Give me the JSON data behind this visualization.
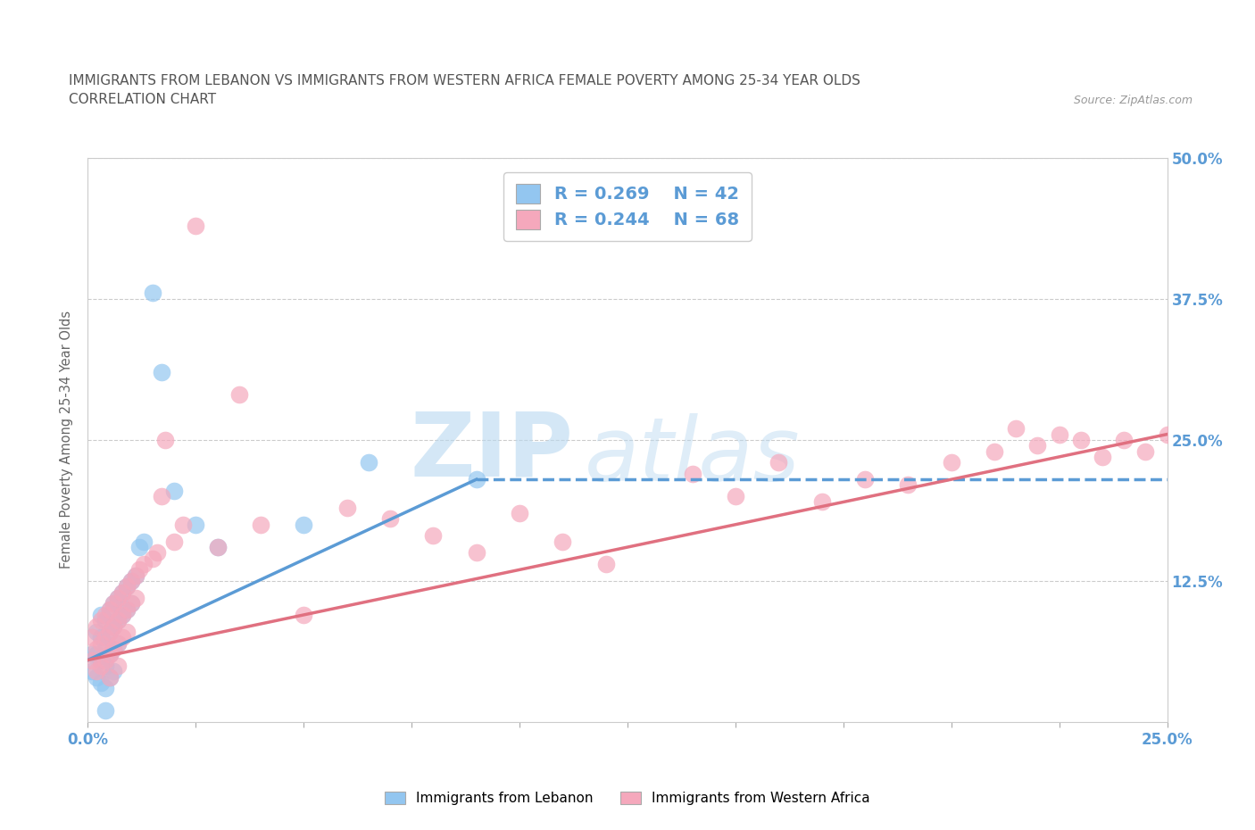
{
  "title_line1": "IMMIGRANTS FROM LEBANON VS IMMIGRANTS FROM WESTERN AFRICA FEMALE POVERTY AMONG 25-34 YEAR OLDS",
  "title_line2": "CORRELATION CHART",
  "source": "Source: ZipAtlas.com",
  "ylabel_label": "Female Poverty Among 25-34 Year Olds",
  "xlim": [
    0.0,
    0.25
  ],
  "ylim": [
    0.0,
    0.5
  ],
  "xticks": [
    0.0,
    0.025,
    0.05,
    0.075,
    0.1,
    0.125,
    0.15,
    0.175,
    0.2,
    0.225,
    0.25
  ],
  "xtick_labels": [
    "0.0%",
    "",
    "",
    "",
    "",
    "",
    "",
    "",
    "",
    "",
    "25.0%"
  ],
  "ytick_positions": [
    0.0,
    0.125,
    0.25,
    0.375,
    0.5
  ],
  "ytick_labels": [
    "",
    "12.5%",
    "25.0%",
    "37.5%",
    "50.0%"
  ],
  "hlines": [
    0.125,
    0.25,
    0.375,
    0.5
  ],
  "color_lebanon": "#93c6f0",
  "color_western_africa": "#f5a8bc",
  "color_lebanon_line": "#5b9bd5",
  "color_western_africa_line": "#e07080",
  "label_lebanon": "Immigrants from Lebanon",
  "label_western_africa": "Immigrants from Western Africa",
  "watermark_zip": "ZIP",
  "watermark_atlas": "atlas",
  "lebanon_scatter_x": [
    0.001,
    0.001,
    0.002,
    0.002,
    0.002,
    0.003,
    0.003,
    0.003,
    0.003,
    0.004,
    0.004,
    0.004,
    0.004,
    0.004,
    0.005,
    0.005,
    0.005,
    0.005,
    0.006,
    0.006,
    0.006,
    0.006,
    0.007,
    0.007,
    0.007,
    0.008,
    0.008,
    0.009,
    0.009,
    0.01,
    0.01,
    0.011,
    0.012,
    0.013,
    0.015,
    0.017,
    0.02,
    0.025,
    0.03,
    0.05,
    0.065,
    0.09
  ],
  "lebanon_scatter_y": [
    0.06,
    0.045,
    0.08,
    0.06,
    0.04,
    0.095,
    0.075,
    0.055,
    0.035,
    0.09,
    0.07,
    0.05,
    0.03,
    0.01,
    0.1,
    0.08,
    0.06,
    0.04,
    0.105,
    0.085,
    0.065,
    0.045,
    0.11,
    0.09,
    0.07,
    0.115,
    0.095,
    0.12,
    0.1,
    0.125,
    0.105,
    0.13,
    0.155,
    0.16,
    0.38,
    0.31,
    0.205,
    0.175,
    0.155,
    0.175,
    0.23,
    0.215
  ],
  "western_africa_scatter_x": [
    0.001,
    0.001,
    0.002,
    0.002,
    0.002,
    0.003,
    0.003,
    0.003,
    0.004,
    0.004,
    0.004,
    0.005,
    0.005,
    0.005,
    0.005,
    0.006,
    0.006,
    0.006,
    0.007,
    0.007,
    0.007,
    0.007,
    0.008,
    0.008,
    0.008,
    0.009,
    0.009,
    0.009,
    0.01,
    0.01,
    0.011,
    0.011,
    0.012,
    0.013,
    0.015,
    0.016,
    0.017,
    0.018,
    0.02,
    0.022,
    0.025,
    0.03,
    0.035,
    0.04,
    0.05,
    0.06,
    0.07,
    0.08,
    0.09,
    0.1,
    0.11,
    0.12,
    0.14,
    0.15,
    0.16,
    0.17,
    0.18,
    0.19,
    0.2,
    0.21,
    0.215,
    0.22,
    0.225,
    0.23,
    0.235,
    0.24,
    0.245,
    0.25
  ],
  "western_africa_scatter_y": [
    0.075,
    0.055,
    0.085,
    0.065,
    0.045,
    0.09,
    0.07,
    0.05,
    0.095,
    0.075,
    0.055,
    0.1,
    0.08,
    0.06,
    0.04,
    0.105,
    0.085,
    0.065,
    0.11,
    0.09,
    0.07,
    0.05,
    0.115,
    0.095,
    0.075,
    0.12,
    0.1,
    0.08,
    0.125,
    0.105,
    0.13,
    0.11,
    0.135,
    0.14,
    0.145,
    0.15,
    0.2,
    0.25,
    0.16,
    0.175,
    0.44,
    0.155,
    0.29,
    0.175,
    0.095,
    0.19,
    0.18,
    0.165,
    0.15,
    0.185,
    0.16,
    0.14,
    0.22,
    0.2,
    0.23,
    0.195,
    0.215,
    0.21,
    0.23,
    0.24,
    0.26,
    0.245,
    0.255,
    0.25,
    0.235,
    0.25,
    0.24,
    0.255
  ],
  "lebanon_trendline": [
    [
      0.0,
      0.055
    ],
    [
      0.09,
      0.215
    ]
  ],
  "lebanon_trendline_dashed": [
    [
      0.09,
      0.215
    ],
    [
      0.25,
      0.215
    ]
  ],
  "western_africa_trendline": [
    [
      0.0,
      0.055
    ],
    [
      0.25,
      0.255
    ]
  ],
  "background_color": "#ffffff",
  "plot_bg_color": "#ffffff",
  "grid_color": "#cccccc",
  "axis_color": "#cccccc",
  "tick_color": "#5b9bd5"
}
